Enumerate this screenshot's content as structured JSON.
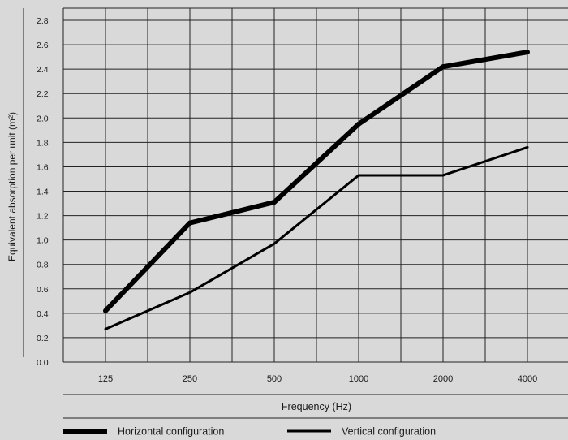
{
  "chart_data": {
    "type": "line",
    "categories": [
      "125",
      "250",
      "500",
      "1000",
      "2000",
      "4000"
    ],
    "series": [
      {
        "name": "Horizontal configuration",
        "values": [
          0.42,
          1.14,
          1.31,
          1.95,
          2.42,
          2.54
        ],
        "color": "#000000",
        "weight": "thick"
      },
      {
        "name": "Vertical configuration",
        "values": [
          0.27,
          0.57,
          0.97,
          1.53,
          1.53,
          1.76
        ],
        "color": "#000000",
        "weight": "thin"
      }
    ],
    "xlabel": "Frequency (Hz)",
    "ylabel": "Equivalent absorption per unit (m²)",
    "ylim": [
      0,
      2.9
    ],
    "yticks": [
      "0.0",
      "0.2",
      "0.4",
      "0.6",
      "0.8",
      "1.0",
      "1.2",
      "1.4",
      "1.6",
      "1.8",
      "2.0",
      "2.2",
      "2.4",
      "2.6",
      "2.8"
    ],
    "grid": true,
    "legend_position": "bottom",
    "background": "#d9d9d9"
  }
}
